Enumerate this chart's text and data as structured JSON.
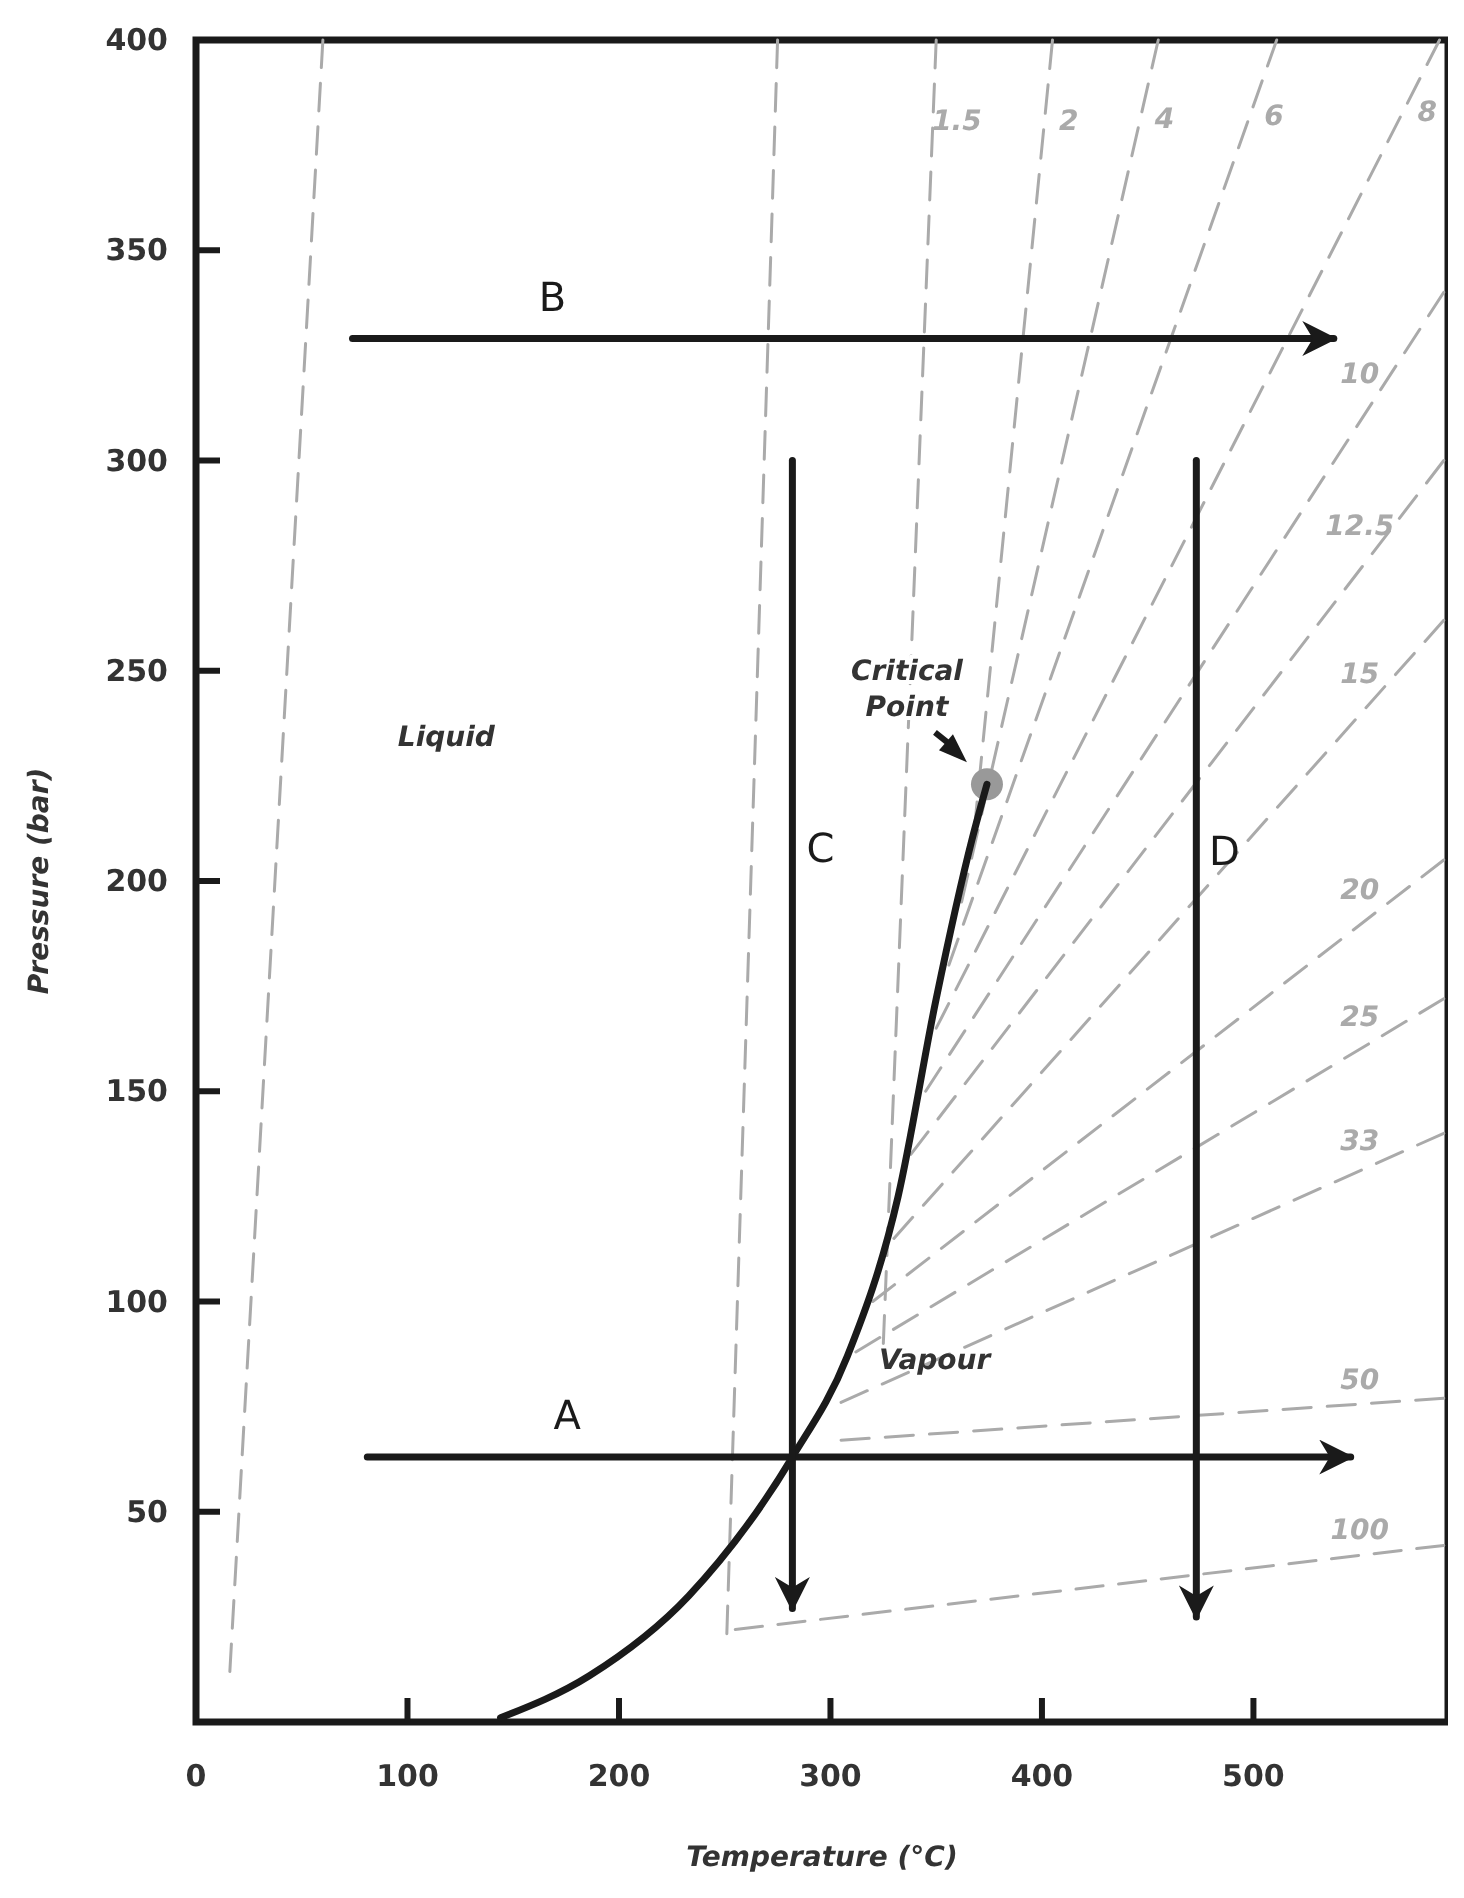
{
  "chart_data": {
    "type": "line",
    "xlabel": "Temperature (°C)",
    "ylabel": "Pressure (bar)",
    "xlim": [
      0,
      592
    ],
    "xticks": [
      0,
      100,
      200,
      300,
      400,
      500
    ],
    "ylim": [
      0,
      400
    ],
    "yticks": [
      50,
      100,
      150,
      200,
      250,
      300,
      350,
      400
    ],
    "grid": false,
    "line_style": "solid",
    "series": [
      {
        "x": [
          144,
          186,
          233,
          282,
          308,
          332,
          350,
          367,
          374
        ],
        "values": [
          1,
          11,
          30,
          63,
          87,
          125,
          172,
          210,
          223
        ],
        "color": "#1a1a1a"
      },
      {
        "x": [
          16,
          60
        ],
        "values": [
          12,
          400
        ],
        "color": "#aaaaaa",
        "line_style": "dashed"
      },
      {
        "x": [
          251,
          275
        ],
        "values": [
          21,
          400
        ],
        "color": "#aaaaaa",
        "line_style": "dashed"
      },
      {
        "name": "1.5",
        "x": [
          325,
          350
        ],
        "values": [
          90,
          400
        ],
        "color": "#aaaaaa",
        "line_style": "dashed"
      },
      {
        "name": "2",
        "x": [
          368,
          405
        ],
        "values": [
          212,
          400
        ],
        "color": "#aaaaaa",
        "line_style": "dashed"
      },
      {
        "name": "4",
        "x": [
          362,
          455
        ],
        "values": [
          195,
          400
        ],
        "color": "#aaaaaa",
        "line_style": "dashed"
      },
      {
        "name": "6",
        "x": [
          356,
          511
        ],
        "values": [
          180,
          400
        ],
        "color": "#aaaaaa",
        "line_style": "dashed"
      },
      {
        "name": "8",
        "x": [
          350,
          588
        ],
        "values": [
          165,
          400
        ],
        "color": "#aaaaaa",
        "line_style": "dashed"
      },
      {
        "name": "10",
        "x": [
          345,
          590
        ],
        "values": [
          150,
          340
        ],
        "color": "#aaaaaa",
        "line_style": "dashed"
      },
      {
        "name": "12.5",
        "x": [
          338,
          590
        ],
        "values": [
          135,
          300
        ],
        "color": "#aaaaaa",
        "line_style": "dashed"
      },
      {
        "name": "15",
        "x": [
          330,
          590
        ],
        "values": [
          115,
          262
        ],
        "color": "#aaaaaa",
        "line_style": "dashed"
      },
      {
        "name": "20",
        "x": [
          320,
          590
        ],
        "values": [
          100,
          205
        ],
        "color": "#aaaaaa",
        "line_style": "dashed"
      },
      {
        "name": "25",
        "x": [
          312,
          590
        ],
        "values": [
          88,
          172
        ],
        "color": "#aaaaaa",
        "line_style": "dashed"
      },
      {
        "name": "33",
        "x": [
          305,
          590
        ],
        "values": [
          76,
          140
        ],
        "color": "#aaaaaa",
        "line_style": "dashed"
      },
      {
        "name": "50",
        "x": [
          305,
          590
        ],
        "values": [
          67,
          77
        ],
        "color": "#aaaaaa",
        "line_style": "dashed"
      },
      {
        "name": "100",
        "x": [
          255,
          590
        ],
        "values": [
          22,
          42
        ],
        "color": "#aaaaaa",
        "line_style": "dashed"
      },
      {
        "name": "A",
        "x": [
          81,
          546
        ],
        "values": [
          63,
          63
        ],
        "color": "#1a1a1a"
      },
      {
        "name": "B",
        "x": [
          74,
          538
        ],
        "values": [
          329,
          329
        ],
        "color": "#1a1a1a"
      },
      {
        "name": "C",
        "x": [
          282,
          282
        ],
        "values": [
          300,
          27
        ],
        "color": "#1a1a1a"
      },
      {
        "name": "D",
        "x": [
          473,
          473
        ],
        "values": [
          300,
          25
        ],
        "color": "#1a1a1a"
      },
      {
        "type": "scatter",
        "x": [
          374
        ],
        "values": [
          223
        ],
        "color": "#999999",
        "marker": "circle"
      }
    ],
    "annotations": [
      {
        "text": "Critical Point",
        "x": 374,
        "y": 223
      },
      "Liquid",
      "Vapour"
    ]
  }
}
